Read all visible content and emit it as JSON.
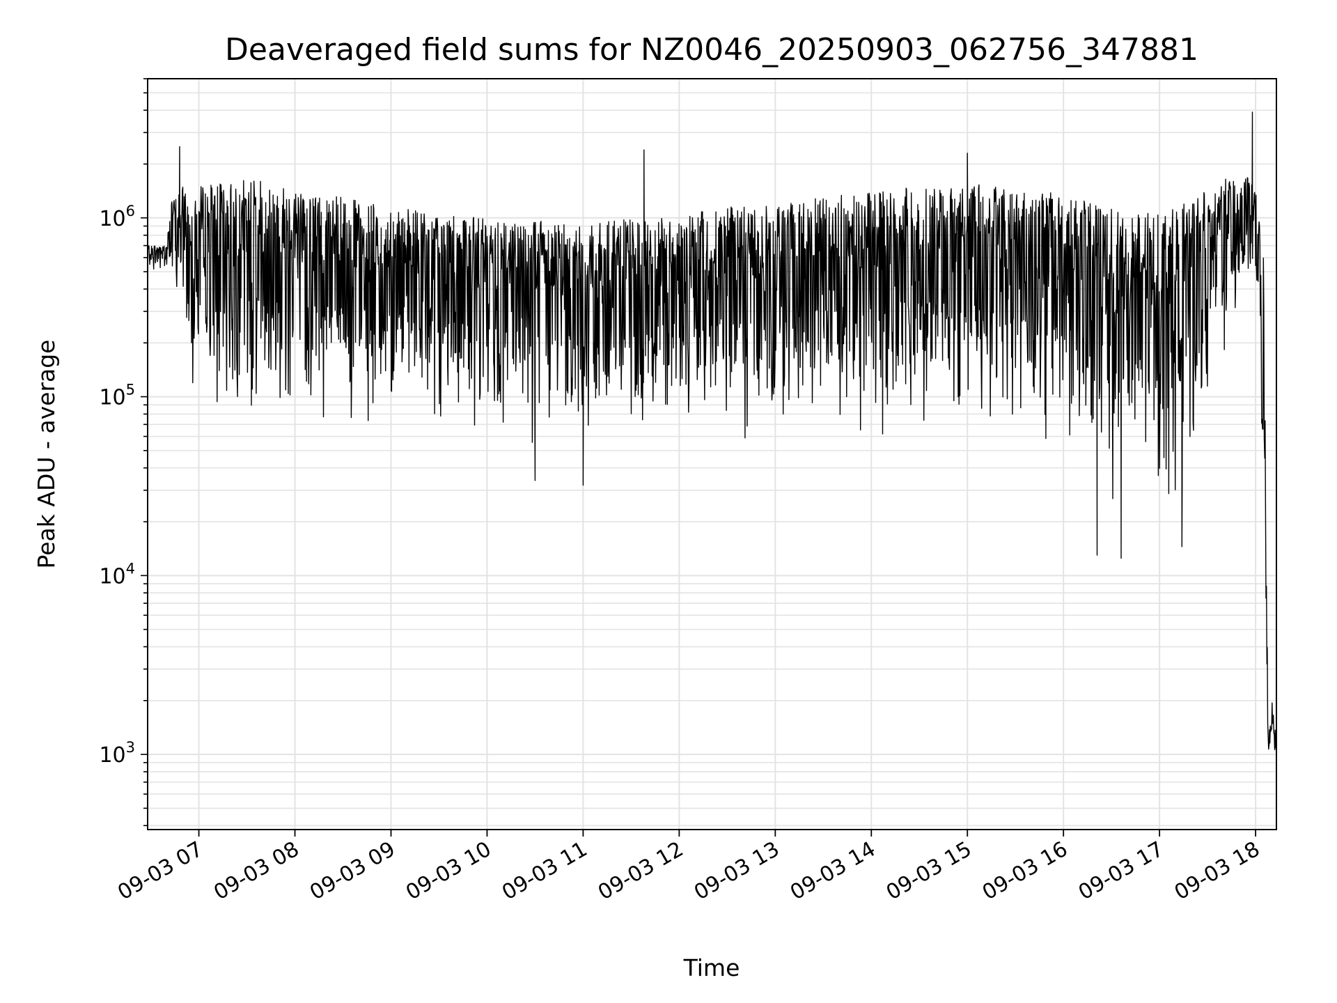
{
  "chart_data": {
    "type": "line",
    "title": "Deaveraged field sums for NZ0046_20250903_062756_347881",
    "xlabel": "Time",
    "ylabel": "Peak ADU - average",
    "yscale": "log",
    "ylim": [
      380,
      6000000
    ],
    "xlim": [
      "09-03 06:28",
      "09-03 18:13"
    ],
    "x_ticks": [
      "09-03 07",
      "09-03 08",
      "09-03 09",
      "09-03 10",
      "09-03 11",
      "09-03 12",
      "09-03 13",
      "09-03 14",
      "09-03 15",
      "09-03 16",
      "09-03 17",
      "09-03 18"
    ],
    "y_ticks": [
      {
        "base": "10",
        "exp": "3",
        "value": 1000
      },
      {
        "base": "10",
        "exp": "4",
        "value": 10000
      },
      {
        "base": "10",
        "exp": "5",
        "value": 100000
      },
      {
        "base": "10",
        "exp": "6",
        "value": 1000000
      }
    ],
    "grid": true,
    "series": [
      {
        "color": "#000000",
        "x": [
          "09-03 06:28",
          "09-03 06:40",
          "09-03 06:42",
          "09-03 06:48",
          "09-03 06:50",
          "09-03 06:55",
          "09-03 07:00",
          "09-03 07:10",
          "09-03 07:20",
          "09-03 07:30",
          "09-03 07:40",
          "09-03 08:00",
          "09-03 08:30",
          "09-03 09:00",
          "09-03 09:30",
          "09-03 10:00",
          "09-03 10:30",
          "09-03 11:00",
          "09-03 11:30",
          "09-03 12:00",
          "09-03 12:30",
          "09-03 13:00",
          "09-03 13:30",
          "09-03 14:00",
          "09-03 14:30",
          "09-03 15:00",
          "09-03 15:30",
          "09-03 16:00",
          "09-03 16:20",
          "09-03 16:40",
          "09-03 17:00",
          "09-03 17:20",
          "09-03 17:40",
          "09-03 17:55",
          "09-03 18:00",
          "09-03 18:05",
          "09-03 18:08",
          "09-03 18:10",
          "09-03 18:13"
        ],
        "upper": [
          700000,
          720000,
          1200000,
          1400000,
          1500000,
          1500000,
          1500000,
          1550000,
          1600000,
          1650000,
          1600000,
          1450000,
          1300000,
          1150000,
          1050000,
          1000000,
          980000,
          950000,
          980000,
          1050000,
          1150000,
          1200000,
          1300000,
          1400000,
          1500000,
          1550000,
          1500000,
          1350000,
          1200000,
          1100000,
          1050000,
          1250000,
          1650000,
          1700000,
          1400000,
          800000,
          1300,
          2100,
          1300
        ],
        "lower": [
          500000,
          480000,
          400000,
          300000,
          150000,
          120000,
          90000,
          70000,
          65000,
          62000,
          60000,
          60000,
          58000,
          55000,
          52000,
          48000,
          45000,
          44000,
          45000,
          47000,
          50000,
          52000,
          55000,
          58000,
          60000,
          55000,
          45000,
          35000,
          25000,
          20000,
          20000,
          30000,
          150000,
          400000,
          300000,
          1000,
          600,
          900,
          600
        ],
        "peaks": [
          {
            "x": "09-03 06:48",
            "y": 2500000
          },
          {
            "x": "09-03 11:38",
            "y": 2400000
          },
          {
            "x": "09-03 15:00",
            "y": 2300000
          },
          {
            "x": "09-03 17:58",
            "y": 3900000
          }
        ],
        "troughs": [
          {
            "x": "09-03 16:21",
            "y": 13000
          },
          {
            "x": "09-03 16:36",
            "y": 12500
          },
          {
            "x": "09-03 17:14",
            "y": 14500
          },
          {
            "x": "09-03 11:00",
            "y": 32000
          },
          {
            "x": "09-03 10:30",
            "y": 34000
          }
        ]
      }
    ]
  }
}
